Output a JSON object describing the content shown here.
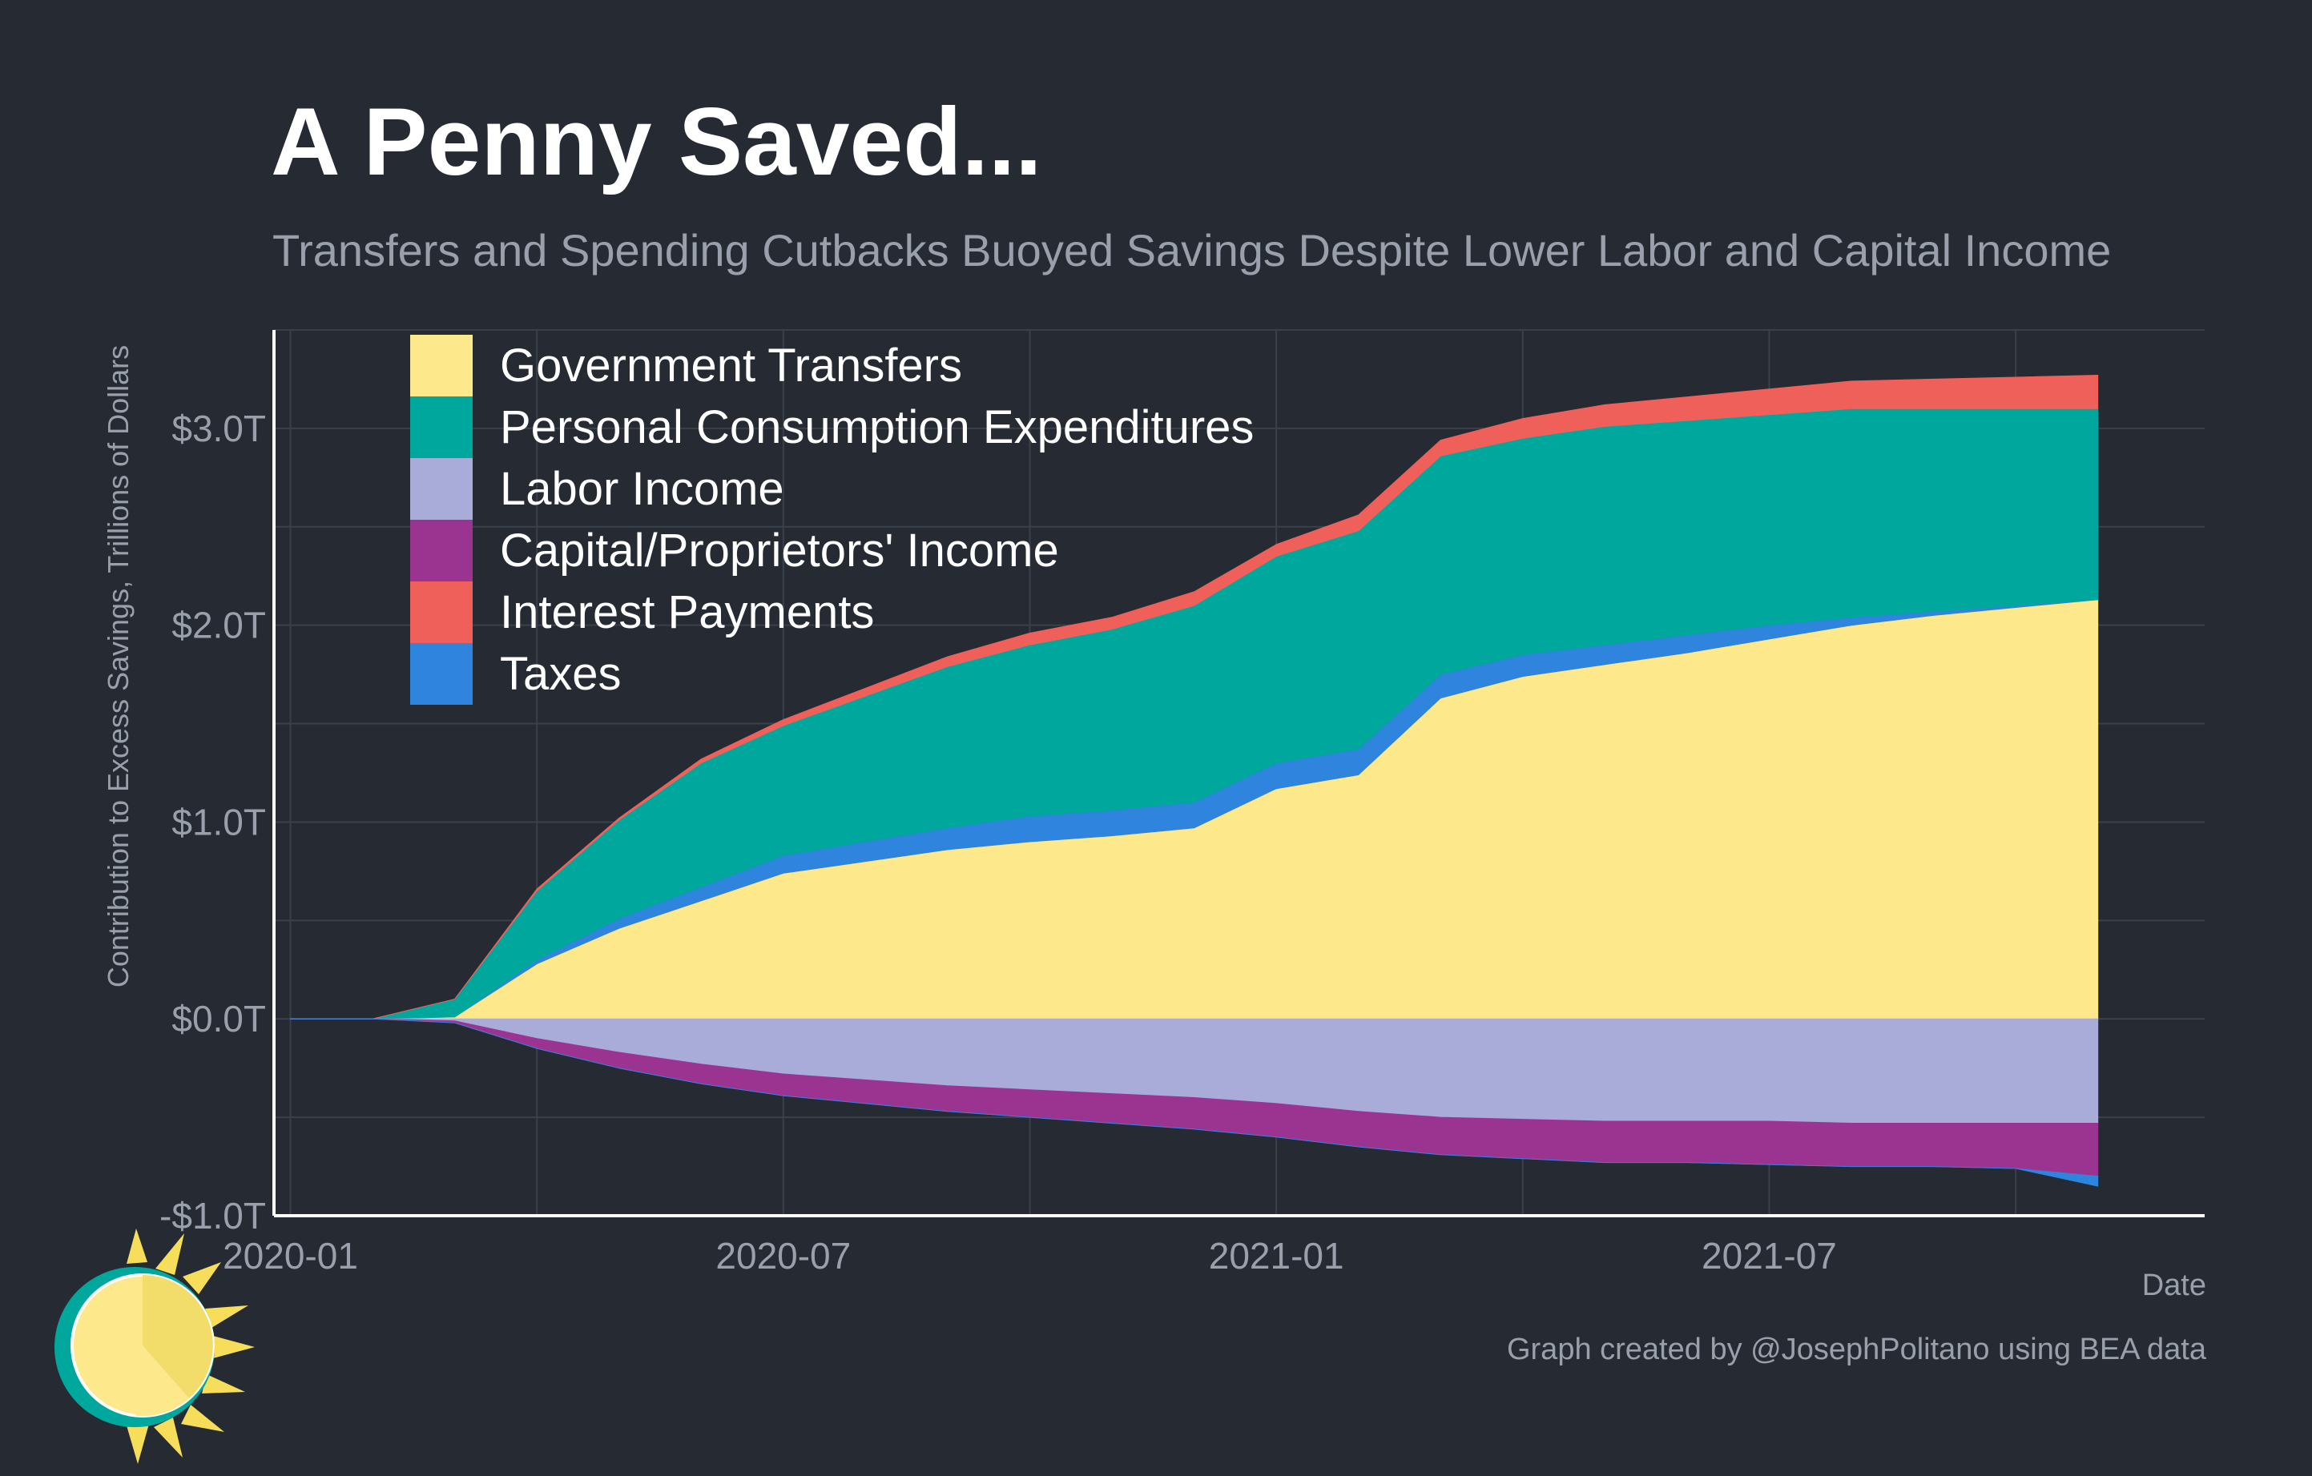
{
  "title": "A Penny Saved...",
  "subtitle": "Transfers and Spending Cutbacks Buoyed Savings Despite Lower Labor and Capital Income",
  "caption": "Graph created by @JosephPolitano using BEA data",
  "colors": {
    "background": "#252a33",
    "grid": "#3b414b",
    "axis": "#ffffff",
    "text_muted": "#9aa0ab"
  },
  "chart_data": {
    "type": "area",
    "stacked": true,
    "title": "A Penny Saved...",
    "subtitle": "Transfers and Spending Cutbacks Buoyed Savings Despite Lower Labor and Capital Income",
    "xlabel": "Date",
    "ylabel": "Contribution to Excess Savings, Trillions of Dollars",
    "ylim": [
      -1.0,
      3.5
    ],
    "yticks": [
      -1.0,
      0.0,
      1.0,
      2.0,
      3.0
    ],
    "ytick_labels": [
      "-$1.0T",
      "$0.0T",
      "$1.0T",
      "$2.0T",
      "$3.0T"
    ],
    "xticks": [
      0,
      6,
      12,
      18
    ],
    "xtick_labels": [
      "2020-01",
      "2020-07",
      "2021-01",
      "2021-07"
    ],
    "xlim": [
      -0.2,
      23.3
    ],
    "x": [
      0,
      1,
      2,
      3,
      4,
      5,
      6,
      7,
      8,
      9,
      10,
      11,
      12,
      13,
      14,
      15,
      16,
      17,
      18,
      19,
      20,
      21,
      22
    ],
    "x_dates": [
      "2020-01",
      "2020-02",
      "2020-03",
      "2020-04",
      "2020-05",
      "2020-06",
      "2020-07",
      "2020-08",
      "2020-09",
      "2020-10",
      "2020-11",
      "2020-12",
      "2021-01",
      "2021-02",
      "2021-03",
      "2021-04",
      "2021-05",
      "2021-06",
      "2021-07",
      "2021-08",
      "2021-09",
      "2021-10",
      "2021-11"
    ],
    "grid": true,
    "legend_position": "top-left",
    "series": [
      {
        "name": "Government Transfers",
        "color": "#fde88b",
        "sign": "positive",
        "values": [
          0,
          0,
          0.01,
          0.28,
          0.46,
          0.6,
          0.74,
          0.8,
          0.86,
          0.9,
          0.93,
          0.97,
          1.17,
          1.24,
          1.63,
          1.74,
          1.8,
          1.86,
          1.93,
          2.0,
          2.05,
          2.09,
          2.13
        ]
      },
      {
        "name": "Taxes",
        "color": "#2f84dd",
        "sign": "positive",
        "values": [
          0,
          0,
          0,
          0.02,
          0.05,
          0.07,
          0.09,
          0.1,
          0.11,
          0.13,
          0.13,
          0.13,
          0.13,
          0.13,
          0.12,
          0.11,
          0.1,
          0.09,
          0.07,
          0.04,
          0.02,
          0.01,
          0.0
        ]
      },
      {
        "name": "Personal Consumption Expenditures",
        "color": "#00a79c",
        "sign": "positive",
        "values": [
          0,
          0,
          0.09,
          0.35,
          0.5,
          0.63,
          0.66,
          0.74,
          0.82,
          0.87,
          0.92,
          1.0,
          1.05,
          1.11,
          1.11,
          1.1,
          1.11,
          1.09,
          1.07,
          1.06,
          1.03,
          1.0,
          0.97
        ]
      },
      {
        "name": "Interest Payments",
        "color": "#f0605a",
        "sign": "positive",
        "values": [
          0,
          0,
          0,
          0.01,
          0.01,
          0.02,
          0.03,
          0.04,
          0.05,
          0.06,
          0.06,
          0.07,
          0.06,
          0.08,
          0.08,
          0.1,
          0.11,
          0.12,
          0.13,
          0.14,
          0.15,
          0.16,
          0.17
        ]
      },
      {
        "name": "Labor Income",
        "color": "#a9acd9",
        "sign": "negative",
        "values": [
          0,
          0,
          -0.01,
          -0.1,
          -0.17,
          -0.23,
          -0.28,
          -0.31,
          -0.34,
          -0.36,
          -0.38,
          -0.4,
          -0.43,
          -0.47,
          -0.5,
          -0.51,
          -0.52,
          -0.52,
          -0.52,
          -0.53,
          -0.53,
          -0.53,
          -0.53
        ]
      },
      {
        "name": "Capital/Proprietors' Income",
        "color": "#9b3490",
        "sign": "negative",
        "values": [
          0,
          0,
          -0.01,
          -0.05,
          -0.08,
          -0.1,
          -0.11,
          -0.12,
          -0.13,
          -0.14,
          -0.15,
          -0.16,
          -0.17,
          -0.18,
          -0.19,
          -0.2,
          -0.21,
          -0.21,
          -0.22,
          -0.22,
          -0.22,
          -0.23,
          -0.27
        ]
      },
      {
        "name": "Taxes (negative)",
        "color": "#2f84dd",
        "sign": "negative",
        "values": [
          0,
          0,
          0,
          0,
          0,
          0,
          0,
          0,
          0,
          0,
          0,
          0,
          0,
          0,
          0,
          0,
          0,
          0,
          0,
          0,
          0,
          0,
          -0.05
        ]
      }
    ],
    "legend": [
      {
        "label": "Government Transfers",
        "color": "#fde88b"
      },
      {
        "label": "Personal Consumption Expenditures",
        "color": "#00a79c"
      },
      {
        "label": "Labor Income",
        "color": "#a9acd9"
      },
      {
        "label": "Capital/Proprietors' Income",
        "color": "#9b3490"
      },
      {
        "label": "Interest Payments",
        "color": "#f0605a"
      },
      {
        "label": "Taxes",
        "color": "#2f84dd"
      }
    ]
  }
}
